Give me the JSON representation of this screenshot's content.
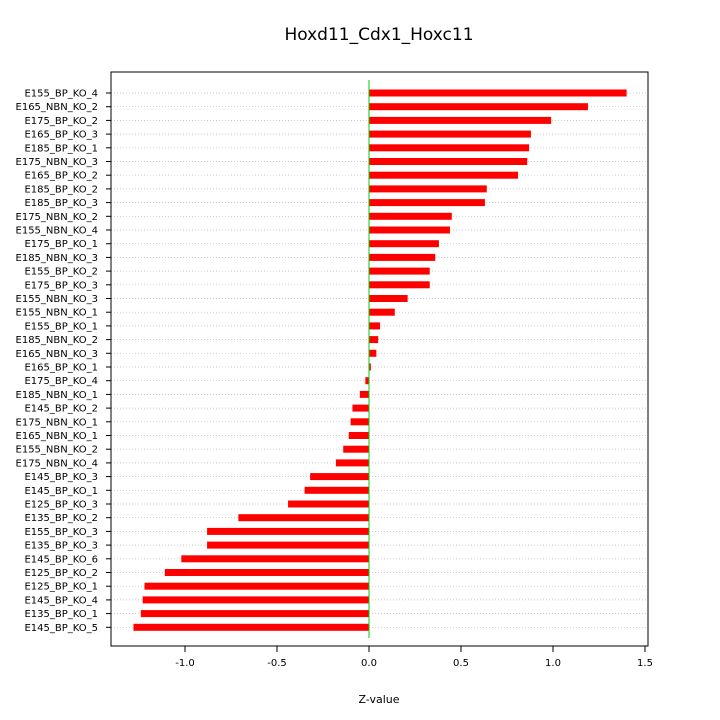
{
  "chart_data": {
    "type": "bar",
    "orientation": "horizontal",
    "title": "Hoxd11_Cdx1_Hoxc11",
    "xlabel": "Z-value",
    "ylabel": "",
    "xlim": [
      -1.35,
      1.5
    ],
    "xticks": [
      -1.0,
      -0.5,
      0.0,
      0.5,
      1.0,
      1.5
    ],
    "xtick_labels": [
      "-1.0",
      "-0.5",
      "0.0",
      "0.5",
      "1.0",
      "1.5"
    ],
    "grid": "horizontal dotted",
    "bar_color": "#ff0000",
    "zero_line_color": "#00cc00",
    "categories": [
      "E155_BP_KO_4",
      "E165_NBN_KO_2",
      "E175_BP_KO_2",
      "E165_BP_KO_3",
      "E185_BP_KO_1",
      "E175_NBN_KO_3",
      "E165_BP_KO_2",
      "E185_BP_KO_2",
      "E185_BP_KO_3",
      "E175_NBN_KO_2",
      "E155_NBN_KO_4",
      "E175_BP_KO_1",
      "E185_NBN_KO_3",
      "E155_BP_KO_2",
      "E175_BP_KO_3",
      "E155_NBN_KO_3",
      "E155_NBN_KO_1",
      "E155_BP_KO_1",
      "E185_NBN_KO_2",
      "E165_NBN_KO_3",
      "E165_BP_KO_1",
      "E175_BP_KO_4",
      "E185_NBN_KO_1",
      "E145_BP_KO_2",
      "E175_NBN_KO_1",
      "E165_NBN_KO_1",
      "E155_NBN_KO_2",
      "E175_NBN_KO_4",
      "E145_BP_KO_3",
      "E145_BP_KO_1",
      "E125_BP_KO_3",
      "E135_BP_KO_2",
      "E155_BP_KO_3",
      "E135_BP_KO_3",
      "E145_BP_KO_6",
      "E125_BP_KO_2",
      "E125_BP_KO_1",
      "E145_BP_KO_4",
      "E135_BP_KO_1",
      "E145_BP_KO_5"
    ],
    "values": [
      1.4,
      1.19,
      0.99,
      0.88,
      0.87,
      0.86,
      0.81,
      0.64,
      0.63,
      0.45,
      0.44,
      0.38,
      0.36,
      0.33,
      0.33,
      0.21,
      0.14,
      0.06,
      0.05,
      0.04,
      0.01,
      -0.02,
      -0.05,
      -0.09,
      -0.1,
      -0.11,
      -0.14,
      -0.18,
      -0.32,
      -0.35,
      -0.44,
      -0.71,
      -0.88,
      -0.88,
      -1.02,
      -1.11,
      -1.22,
      -1.23,
      -1.24,
      -1.28
    ]
  }
}
